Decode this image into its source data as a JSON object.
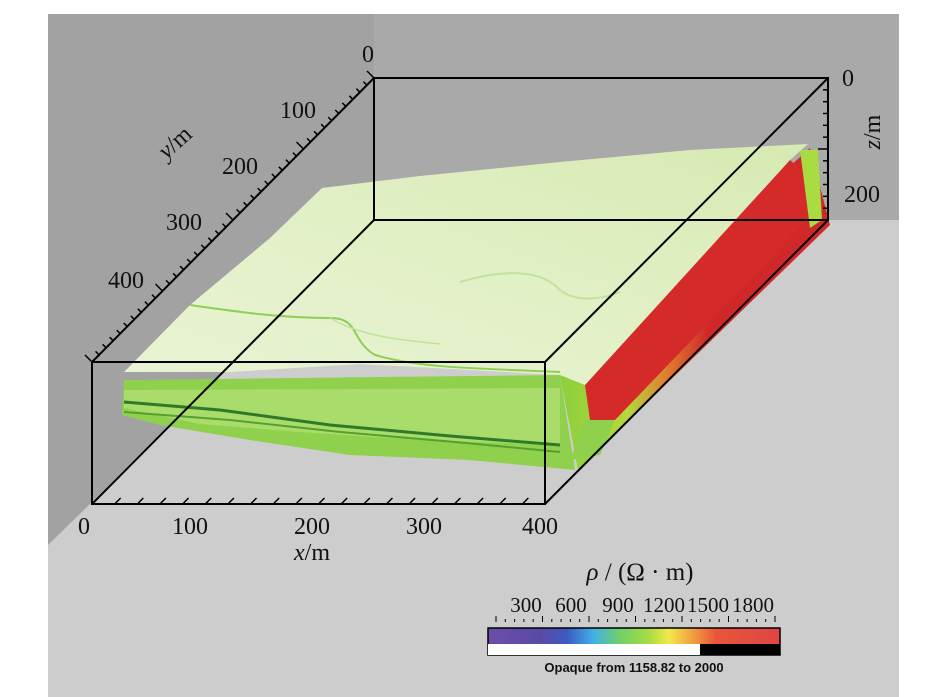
{
  "x_axis": {
    "title_var": "x",
    "title_unit": "/m",
    "ticks": [
      "0",
      "100",
      "200",
      "300",
      "400"
    ]
  },
  "y_axis": {
    "title_var": "y",
    "title_unit": "/m",
    "ticks": [
      "0",
      "100",
      "200",
      "300",
      "400"
    ]
  },
  "z_axis": {
    "title_var": "z",
    "title_unit": "/m",
    "ticks": [
      "0",
      "200"
    ]
  },
  "legend": {
    "title_var": "ρ",
    "title_unit": " / (Ω · m)",
    "ticks": [
      "300",
      "600",
      "900",
      "1200",
      "1500",
      "1800"
    ],
    "note": "Opaque from 1158.82 to 2000",
    "colors": [
      "#6a4ea8",
      "#5050b0",
      "#3a66c8",
      "#3fb0e8",
      "#6fd06a",
      "#b8e04a",
      "#f2e84a",
      "#f0a83a",
      "#e8563a",
      "#e04040"
    ]
  },
  "colors": {
    "background_wall": "#a6a6a6",
    "floor": "#cdcdcd",
    "surface": "#e2f0c8",
    "surface_green": "#9fd36a",
    "anomaly": "#d42a2a",
    "box_line": "#000000"
  }
}
